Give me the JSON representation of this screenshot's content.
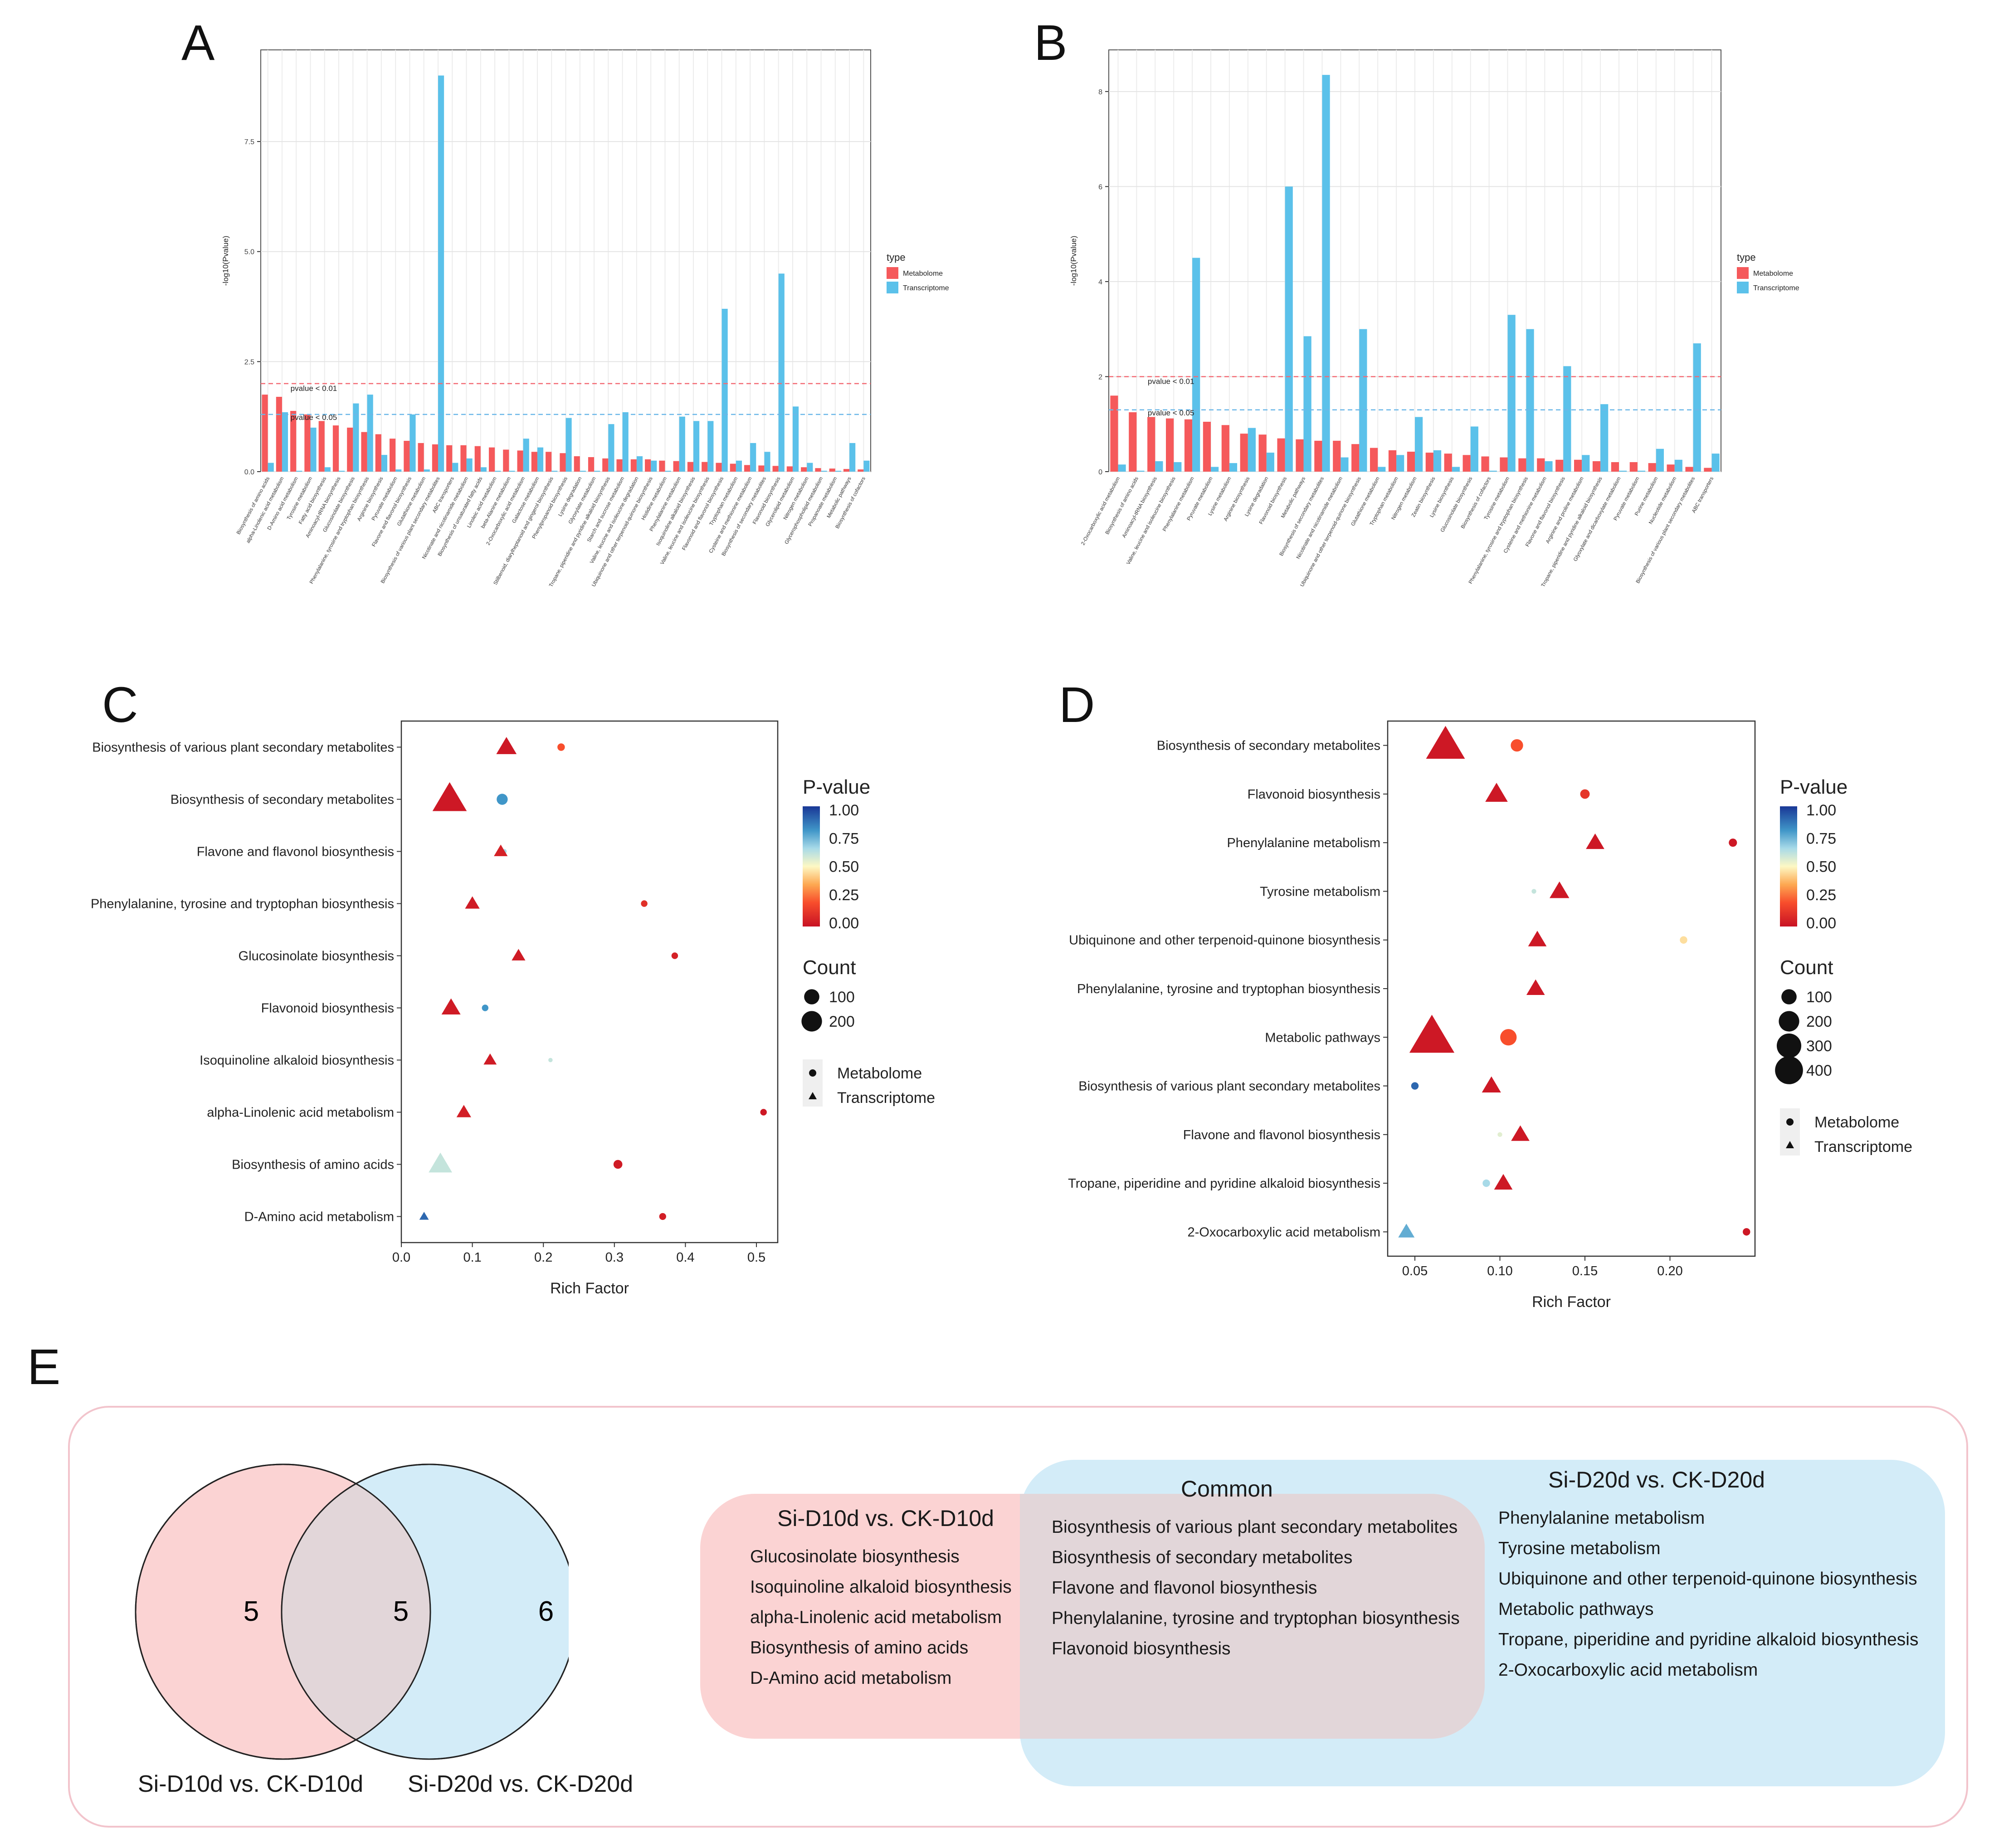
{
  "panels": {
    "a": "A",
    "b": "B",
    "c": "C",
    "d": "D",
    "e": "E"
  },
  "bar_common": {
    "legend_title": "type",
    "legend_items": [
      "Metabolome",
      "Transcriptome"
    ],
    "ylabel": "-log10(Pvalue)",
    "threshold_01": "pvalue < 0.01",
    "threshold_05": "pvalue < 0.05",
    "colors": {
      "metabolome": "#f5595b",
      "transcriptome": "#5bc1ea"
    }
  },
  "dot_common": {
    "legend_pvalue_title": "P-value",
    "legend_count_title": "Count",
    "legend_shape_items": [
      "Metabolome",
      "Transcriptome"
    ],
    "xlabel": "Rich Factor",
    "pvalue_ticks": [
      "1.00",
      "0.75",
      "0.50",
      "0.25",
      "0.00"
    ]
  },
  "chart_data": [
    {
      "id": "A",
      "type": "bar",
      "ylabel": "-log10(Pvalue)",
      "ylim": [
        0,
        9.5
      ],
      "yticks": [
        0,
        2.5,
        5,
        7.5
      ],
      "ytick_labels": [
        "0.0",
        "2.5",
        "5.0",
        "7.5"
      ],
      "thresholds": [
        2,
        1.3
      ],
      "categories": [
        "Biosynthesis of amino acids",
        "alpha-Linolenic acid metabolism",
        "D-Amino acid metabolism",
        "Tyrosine metabolism",
        "Fatty acid biosynthesis",
        "Aminoacyl-tRNA biosynthesis",
        "Glucosinolate biosynthesis",
        "Phenylalanine, tyrosine and tryptophan biosynthesis",
        "Arginine biosynthesis",
        "Pyruvate metabolism",
        "Flavone and flavonol biosynthesis",
        "Glutathione metabolism",
        "Biosynthesis of various plant secondary metabolites",
        "ABC transporters",
        "Nicotinate and nicotinamide metabolism",
        "Biosynthesis of unsaturated fatty acids",
        "Linoleic acid metabolism",
        "beta-Alanine metabolism",
        "2-Oxocarboxylic acid metabolism",
        "Galactose metabolism",
        "Stilbenoid, diarylheptanoid and gingerol biosynthesis",
        "Phenylpropanoid biosynthesis",
        "Lysine degradation",
        "Glyoxylate metabolism",
        "Tropane, piperidine and pyridine alkaloid biosynthesis",
        "Starch and sucrose metabolism",
        "Valine, leucine and isoleucine degradation",
        "Ubiquinone and other terpenoid-quinone biosynthesis",
        "Histidine metabolism",
        "Phenylalanine metabolism",
        "Isoquinoline alkaloid biosynthesis",
        "Valine, leucine and isoleucine biosynthesis",
        "Flavonoid and flavonol biosynthesis",
        "Tryptophan metabolism",
        "Cysteine and methionine metabolism",
        "Biosynthesis of secondary metabolites",
        "Flavonoid biosynthesis",
        "Glycerolipid metabolism",
        "Nitrogen metabolism",
        "Glycerophospholipid metabolism",
        "Propanoate metabolism",
        "Metabolic pathways",
        "Biosynthesis of cofactors"
      ],
      "series": [
        {
          "name": "Metabolome",
          "values": [
            1.75,
            1.7,
            1.38,
            1.3,
            1.15,
            1.05,
            1.0,
            0.9,
            0.85,
            0.75,
            0.7,
            0.65,
            0.62,
            0.6,
            0.6,
            0.58,
            0.55,
            0.5,
            0.48,
            0.45,
            0.45,
            0.42,
            0.35,
            0.33,
            0.3,
            0.28,
            0.28,
            0.28,
            0.25,
            0.24,
            0.22,
            0.22,
            0.2,
            0.18,
            0.15,
            0.14,
            0.13,
            0.12,
            0.1,
            0.08,
            0.07,
            0.06,
            0.05
          ]
        },
        {
          "name": "Transcriptome",
          "values": [
            0.2,
            1.35,
            0.02,
            1.0,
            0.1,
            0.02,
            1.55,
            1.75,
            0.38,
            0.05,
            1.3,
            0.05,
            9.0,
            0.2,
            0.3,
            0.1,
            0.02,
            0.02,
            0.75,
            0.55,
            0.02,
            1.22,
            0.02,
            0.02,
            1.08,
            1.35,
            0.35,
            0.25,
            0.02,
            1.25,
            1.15,
            1.15,
            3.7,
            0.25,
            0.65,
            0.45,
            4.5,
            1.48,
            0.2,
            0.02,
            0.02,
            0.65,
            0.25
          ]
        }
      ]
    },
    {
      "id": "B",
      "type": "bar",
      "ylabel": "-log10(Pvalue)",
      "ylim": [
        0,
        8.8
      ],
      "yticks": [
        0,
        2,
        4,
        6,
        8
      ],
      "ytick_labels": [
        "0",
        "2",
        "4",
        "6",
        "8"
      ],
      "thresholds": [
        2,
        1.3
      ],
      "categories": [
        "2-Oxocarboxylic acid metabolism",
        "Biosynthesis of amino acids",
        "Aminoacyl-tRNA biosynthesis",
        "Valine, leucine and isoleucine biosynthesis",
        "Phenylalanine metabolism",
        "Pyruvate metabolism",
        "Lysine metabolism",
        "Arginine biosynthesis",
        "Lysine degradation",
        "Flavonoid biosynthesis",
        "Metabolic pathways",
        "Biosynthesis of secondary metabolites",
        "Nicotinate and nicotinamide metabolism",
        "Ubiquinone and other terpenoid-quinone biosynthesis",
        "Glutathione metabolism",
        "Tryptophan metabolism",
        "Nitrogen metabolism",
        "Zeatin biosynthesis",
        "Lysine biosynthesis",
        "Glucosinolate biosynthesis",
        "Biosynthesis of cofactors",
        "Tyrosine metabolism",
        "Phenylalanine, tyrosine and tryptophan biosynthesis",
        "Cysteine and methionine metabolism",
        "Flavone and flavonol biosynthesis",
        "Arginine and proline metabolism",
        "Tropane, piperidine and pyridine alkaloid biosynthesis",
        "Glyoxylate and dicarboxylate metabolism",
        "Pyruvate metabolism",
        "Purine metabolism",
        "Nucleotide metabolism",
        "Biosynthesis of various plant secondary metabolites",
        "ABC transporters"
      ],
      "series": [
        {
          "name": "Metabolome",
          "values": [
            1.6,
            1.25,
            1.15,
            1.12,
            1.1,
            1.05,
            0.98,
            0.8,
            0.78,
            0.7,
            0.68,
            0.65,
            0.65,
            0.58,
            0.5,
            0.45,
            0.42,
            0.4,
            0.38,
            0.35,
            0.32,
            0.3,
            0.28,
            0.28,
            0.25,
            0.25,
            0.22,
            0.2,
            0.2,
            0.18,
            0.15,
            0.1,
            0.08
          ]
        },
        {
          "name": "Transcriptome",
          "values": [
            0.15,
            0.02,
            0.22,
            0.2,
            4.5,
            0.1,
            0.18,
            0.92,
            0.4,
            6.0,
            2.85,
            8.35,
            0.3,
            3.0,
            0.1,
            0.35,
            1.15,
            0.45,
            0.1,
            0.95,
            0.02,
            3.3,
            3.0,
            0.22,
            2.22,
            0.35,
            1.42,
            0.02,
            0.02,
            0.48,
            0.25,
            2.7,
            0.38
          ]
        }
      ]
    },
    {
      "id": "C",
      "type": "scatter",
      "xlabel": "Rich Factor",
      "xlim": [
        0.0,
        0.53
      ],
      "xticks": [
        0.0,
        0.1,
        0.2,
        0.3,
        0.4,
        0.5
      ],
      "xtick_labels": [
        "0.0",
        "0.1",
        "0.2",
        "0.3",
        "0.4",
        "0.5"
      ],
      "categories": [
        "Biosynthesis of various plant secondary metabolites",
        "Biosynthesis of secondary metabolites",
        "Flavone and flavonol biosynthesis",
        "Phenylalanine, tyrosine and tryptophan biosynthesis",
        "Glucosinolate biosynthesis",
        "Flavonoid biosynthesis",
        "Isoquinoline alkaloid biosynthesis",
        "alpha-Linolenic acid metabolism",
        "Biosynthesis of amino acids",
        "D-Amino acid metabolism"
      ],
      "count_legend": [
        "100",
        "200"
      ],
      "points": [
        {
          "pathway": 0,
          "type": "Metabolome",
          "x": 0.225,
          "count": 15,
          "p": 0.2
        },
        {
          "pathway": 0,
          "type": "Transcriptome",
          "x": 0.148,
          "count": 70,
          "p": 0.02
        },
        {
          "pathway": 1,
          "type": "Metabolome",
          "x": 0.142,
          "count": 45,
          "p": 0.8
        },
        {
          "pathway": 1,
          "type": "Transcriptome",
          "x": 0.068,
          "count": 240,
          "p": 0.02
        },
        {
          "pathway": 2,
          "type": "Metabolome",
          "x": 0.145,
          "count": 3,
          "p": 0.65
        },
        {
          "pathway": 2,
          "type": "Transcriptome",
          "x": 0.14,
          "count": 25,
          "p": 0.05
        },
        {
          "pathway": 3,
          "type": "Metabolome",
          "x": 0.342,
          "count": 10,
          "p": 0.1
        },
        {
          "pathway": 3,
          "type": "Transcriptome",
          "x": 0.1,
          "count": 30,
          "p": 0.03
        },
        {
          "pathway": 4,
          "type": "Metabolome",
          "x": 0.385,
          "count": 10,
          "p": 0.05
        },
        {
          "pathway": 4,
          "type": "Transcriptome",
          "x": 0.165,
          "count": 25,
          "p": 0.03
        },
        {
          "pathway": 5,
          "type": "Metabolome",
          "x": 0.118,
          "count": 10,
          "p": 0.8
        },
        {
          "pathway": 5,
          "type": "Transcriptome",
          "x": 0.07,
          "count": 60,
          "p": 0.03
        },
        {
          "pathway": 6,
          "type": "Metabolome",
          "x": 0.21,
          "count": 2,
          "p": 0.6
        },
        {
          "pathway": 6,
          "type": "Transcriptome",
          "x": 0.125,
          "count": 22,
          "p": 0.03
        },
        {
          "pathway": 7,
          "type": "Metabolome",
          "x": 0.51,
          "count": 10,
          "p": 0.02
        },
        {
          "pathway": 7,
          "type": "Transcriptome",
          "x": 0.088,
          "count": 30,
          "p": 0.04
        },
        {
          "pathway": 8,
          "type": "Metabolome",
          "x": 0.305,
          "count": 25,
          "p": 0.03
        },
        {
          "pathway": 8,
          "type": "Transcriptome",
          "x": 0.055,
          "count": 100,
          "p": 0.6
        },
        {
          "pathway": 9,
          "type": "Metabolome",
          "x": 0.368,
          "count": 12,
          "p": 0.04
        },
        {
          "pathway": 9,
          "type": "Transcriptome",
          "x": 0.032,
          "count": 8,
          "p": 0.9
        }
      ]
    },
    {
      "id": "D",
      "type": "scatter",
      "xlabel": "Rich Factor",
      "xlim": [
        0.034,
        0.25
      ],
      "xticks": [
        0.05,
        0.1,
        0.15,
        0.2
      ],
      "xtick_labels": [
        "0.05",
        "0.10",
        "0.15",
        "0.20"
      ],
      "categories": [
        "Biosynthesis of secondary metabolites",
        "Flavonoid biosynthesis",
        "Phenylalanine metabolism",
        "Tyrosine metabolism",
        "Ubiquinone and other terpenoid-quinone biosynthesis",
        "Phenylalanine, tyrosine and tryptophan biosynthesis",
        "Metabolic pathways",
        "Biosynthesis of various plant secondary metabolites",
        "Flavone and flavonol biosynthesis",
        "Tropane, piperidine and pyridine alkaloid biosynthesis",
        "2-Oxocarboxylic acid metabolism"
      ],
      "count_legend": [
        "100",
        "200",
        "300",
        "400"
      ],
      "points": [
        {
          "pathway": 0,
          "type": "Metabolome",
          "x": 0.11,
          "count": 60,
          "p": 0.2
        },
        {
          "pathway": 0,
          "type": "Transcriptome",
          "x": 0.068,
          "count": 320,
          "p": 0.02
        },
        {
          "pathway": 1,
          "type": "Metabolome",
          "x": 0.15,
          "count": 30,
          "p": 0.12
        },
        {
          "pathway": 1,
          "type": "Transcriptome",
          "x": 0.098,
          "count": 90,
          "p": 0.02
        },
        {
          "pathway": 2,
          "type": "Metabolome",
          "x": 0.237,
          "count": 20,
          "p": 0.02
        },
        {
          "pathway": 2,
          "type": "Transcriptome",
          "x": 0.156,
          "count": 55,
          "p": 0.02
        },
        {
          "pathway": 3,
          "type": "Metabolome",
          "x": 0.12,
          "count": 3,
          "p": 0.6
        },
        {
          "pathway": 3,
          "type": "Transcriptome",
          "x": 0.135,
          "count": 65,
          "p": 0.02
        },
        {
          "pathway": 4,
          "type": "Metabolome",
          "x": 0.208,
          "count": 15,
          "p": 0.45
        },
        {
          "pathway": 4,
          "type": "Transcriptome",
          "x": 0.122,
          "count": 55,
          "p": 0.02
        },
        {
          "pathway": 5,
          "type": "Metabolome",
          "x": 0.12,
          "count": 3,
          "p": 0.15
        },
        {
          "pathway": 5,
          "type": "Transcriptome",
          "x": 0.121,
          "count": 55,
          "p": 0.02
        },
        {
          "pathway": 6,
          "type": "Metabolome",
          "x": 0.105,
          "count": 120,
          "p": 0.2
        },
        {
          "pathway": 6,
          "type": "Transcriptome",
          "x": 0.06,
          "count": 440,
          "p": 0.02
        },
        {
          "pathway": 7,
          "type": "Metabolome",
          "x": 0.05,
          "count": 15,
          "p": 0.9
        },
        {
          "pathway": 7,
          "type": "Transcriptome",
          "x": 0.095,
          "count": 60,
          "p": 0.02
        },
        {
          "pathway": 8,
          "type": "Metabolome",
          "x": 0.1,
          "count": 3,
          "p": 0.55
        },
        {
          "pathway": 8,
          "type": "Transcriptome",
          "x": 0.112,
          "count": 55,
          "p": 0.02
        },
        {
          "pathway": 9,
          "type": "Metabolome",
          "x": 0.092,
          "count": 15,
          "p": 0.65
        },
        {
          "pathway": 9,
          "type": "Transcriptome",
          "x": 0.102,
          "count": 55,
          "p": 0.02
        },
        {
          "pathway": 10,
          "type": "Metabolome",
          "x": 0.245,
          "count": 15,
          "p": 0.02
        },
        {
          "pathway": 10,
          "type": "Transcriptome",
          "x": 0.045,
          "count": 40,
          "p": 0.75
        }
      ]
    }
  ],
  "venn": {
    "left_count": "5",
    "middle_count": "5",
    "right_count": "6",
    "left_label": "Si-D10d vs. CK-D10d",
    "right_label": "Si-D20d vs. CK-D20d",
    "colors": {
      "left": "#fbd3d3",
      "right": "#d3ecf8",
      "overlap": "#e2d6d9"
    },
    "boxes": {
      "left_title": "Si-D10d vs. CK-D10d",
      "left_items": [
        "Glucosinolate biosynthesis",
        "Isoquinoline alkaloid biosynthesis",
        "alpha-Linolenic acid metabolism",
        "Biosynthesis of amino acids",
        "D-Amino acid metabolism"
      ],
      "common_title": "Common",
      "common_items": [
        "Biosynthesis of various plant secondary metabolites",
        "Biosynthesis of secondary metabolites",
        "Flavone and flavonol biosynthesis",
        "Phenylalanine, tyrosine and tryptophan biosynthesis",
        "Flavonoid biosynthesis"
      ],
      "right_title": "Si-D20d vs. CK-D20d",
      "right_items": [
        "Phenylalanine metabolism",
        "Tyrosine metabolism",
        "Ubiquinone and other terpenoid-quinone biosynthesis",
        "Metabolic pathways",
        "Tropane, piperidine and pyridine alkaloid biosynthesis",
        "2-Oxocarboxylic acid metabolism"
      ]
    }
  }
}
